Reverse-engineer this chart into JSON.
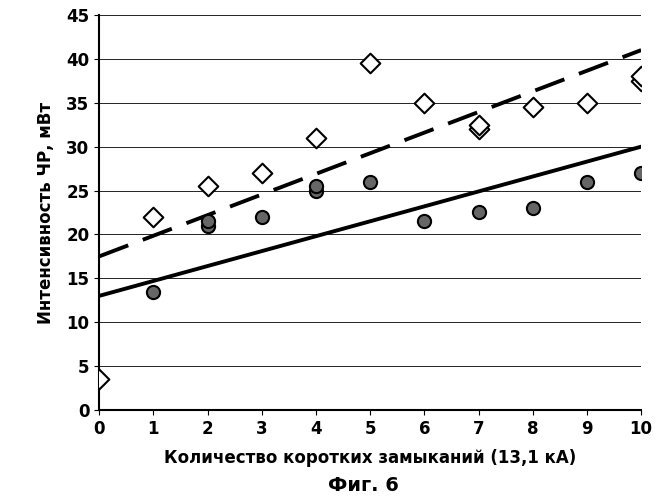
{
  "circles_x": [
    0,
    1,
    2,
    2,
    3,
    4,
    4,
    5,
    6,
    7,
    8,
    9,
    10
  ],
  "circles_y": [
    3.5,
    13.5,
    21.0,
    21.5,
    22.0,
    25.0,
    25.5,
    26.0,
    21.5,
    22.5,
    23.0,
    26.0,
    27.0
  ],
  "diamonds_x": [
    0,
    1,
    2,
    3,
    4,
    5,
    6,
    7,
    7,
    8,
    9,
    10,
    10
  ],
  "diamonds_y": [
    3.5,
    22.0,
    25.5,
    27.0,
    31.0,
    39.5,
    35.0,
    32.0,
    32.5,
    34.5,
    35.0,
    37.5,
    38.0
  ],
  "solid_line_x": [
    0,
    10
  ],
  "solid_line_y": [
    13.0,
    30.0
  ],
  "dashed_line_x": [
    0,
    10
  ],
  "dashed_line_y": [
    17.5,
    41.0
  ],
  "xlabel": "Количество коротких замыканий (13,1 кА)",
  "ylabel": "Интенсивность ЧР, мВт",
  "caption": "Фиг. 6",
  "xlim": [
    0,
    10
  ],
  "ylim": [
    0,
    45
  ],
  "xticks": [
    0,
    1,
    2,
    3,
    4,
    5,
    6,
    7,
    8,
    9,
    10
  ],
  "yticks": [
    0,
    5,
    10,
    15,
    20,
    25,
    30,
    35,
    40,
    45
  ],
  "bg_color": "#ffffff",
  "line_color": "#000000",
  "circle_facecolor": "#666666",
  "circle_edgecolor": "#000000",
  "diamond_facecolor": "#ffffff",
  "diamond_edgecolor": "#000000"
}
